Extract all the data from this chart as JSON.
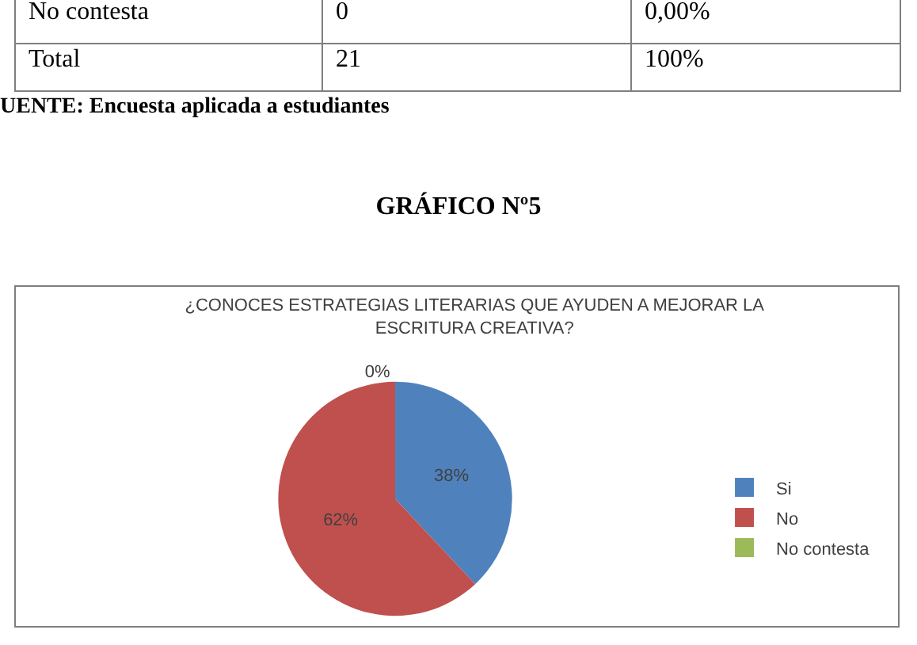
{
  "chart_data": {
    "type": "pie",
    "title": "¿CONOCES ESTRATEGIAS LITERARIAS QUE AYUDEN A MEJORAR LA ESCRITURA CREATIVA?",
    "categories": [
      "Si",
      "No",
      "No contesta"
    ],
    "values": [
      38,
      62,
      0
    ],
    "colors": [
      "#4f81bd",
      "#c0504d",
      "#9bbb59"
    ],
    "value_labels": [
      "38%",
      "62%",
      "0%"
    ],
    "legend": "right",
    "annotations": [
      "No contesta",
      "0",
      "0,00%",
      "Total",
      "21",
      "100%",
      "UENTE: Encuesta aplicada a estudiantes",
      "GRÁFICO Nº5"
    ]
  }
}
